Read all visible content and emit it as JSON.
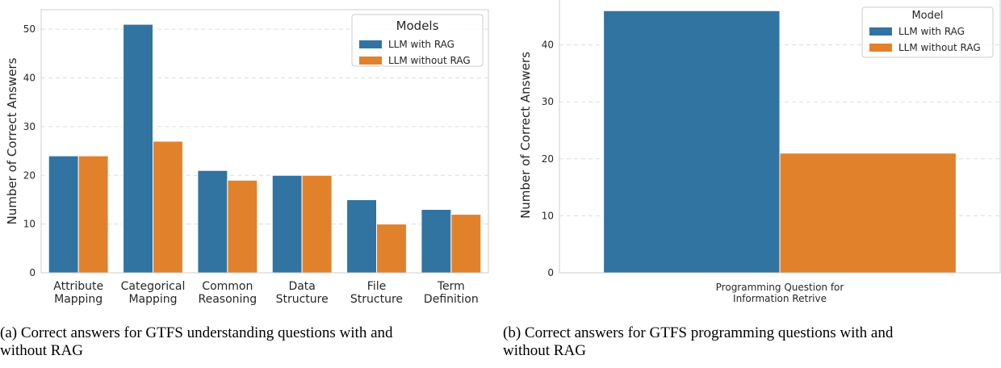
{
  "chart_data": [
    {
      "type": "bar",
      "categories": [
        [
          "Attribute",
          "Mapping"
        ],
        [
          "Categorical",
          "Mapping"
        ],
        [
          "Common",
          "Reasoning"
        ],
        [
          "Data",
          "Structure"
        ],
        [
          "File",
          "Structure"
        ],
        [
          "Term",
          "Definition"
        ]
      ],
      "series": [
        {
          "name": "LLM with RAG",
          "color": "#3274a1",
          "values": [
            24,
            51,
            21,
            20,
            15,
            13
          ]
        },
        {
          "name": "LLM without RAG",
          "color": "#e1812c",
          "values": [
            24,
            27,
            19,
            20,
            10,
            12
          ]
        }
      ],
      "ylabel": "Number of Correct Answers",
      "xlabel": "",
      "ylim": [
        0,
        54
      ],
      "yticks": [
        0,
        10,
        20,
        30,
        40,
        50
      ],
      "legend_title": "Models",
      "legend_position": "top-right",
      "grid": "horizontal dashed"
    },
    {
      "type": "bar",
      "categories": [
        [
          "Programming Question for",
          "Information Retrive"
        ]
      ],
      "series": [
        {
          "name": "LLM with RAG",
          "color": "#3274a1",
          "values": [
            46
          ]
        },
        {
          "name": "LLM without RAG",
          "color": "#e1812c",
          "values": [
            21
          ]
        }
      ],
      "ylabel": "Number of Correct Answers",
      "xlabel": "",
      "ylim": [
        0,
        48.3
      ],
      "yticks": [
        0,
        10,
        20,
        30,
        40
      ],
      "legend_title": "Model",
      "legend_position": "top-right",
      "grid": "horizontal dashed"
    }
  ],
  "captions": {
    "a": [
      "(a) Correct answers for GTFS understanding questions with and",
      "without RAG"
    ],
    "b": [
      "(b) Correct answers for GTFS programming questions with and",
      "without RAG"
    ]
  }
}
